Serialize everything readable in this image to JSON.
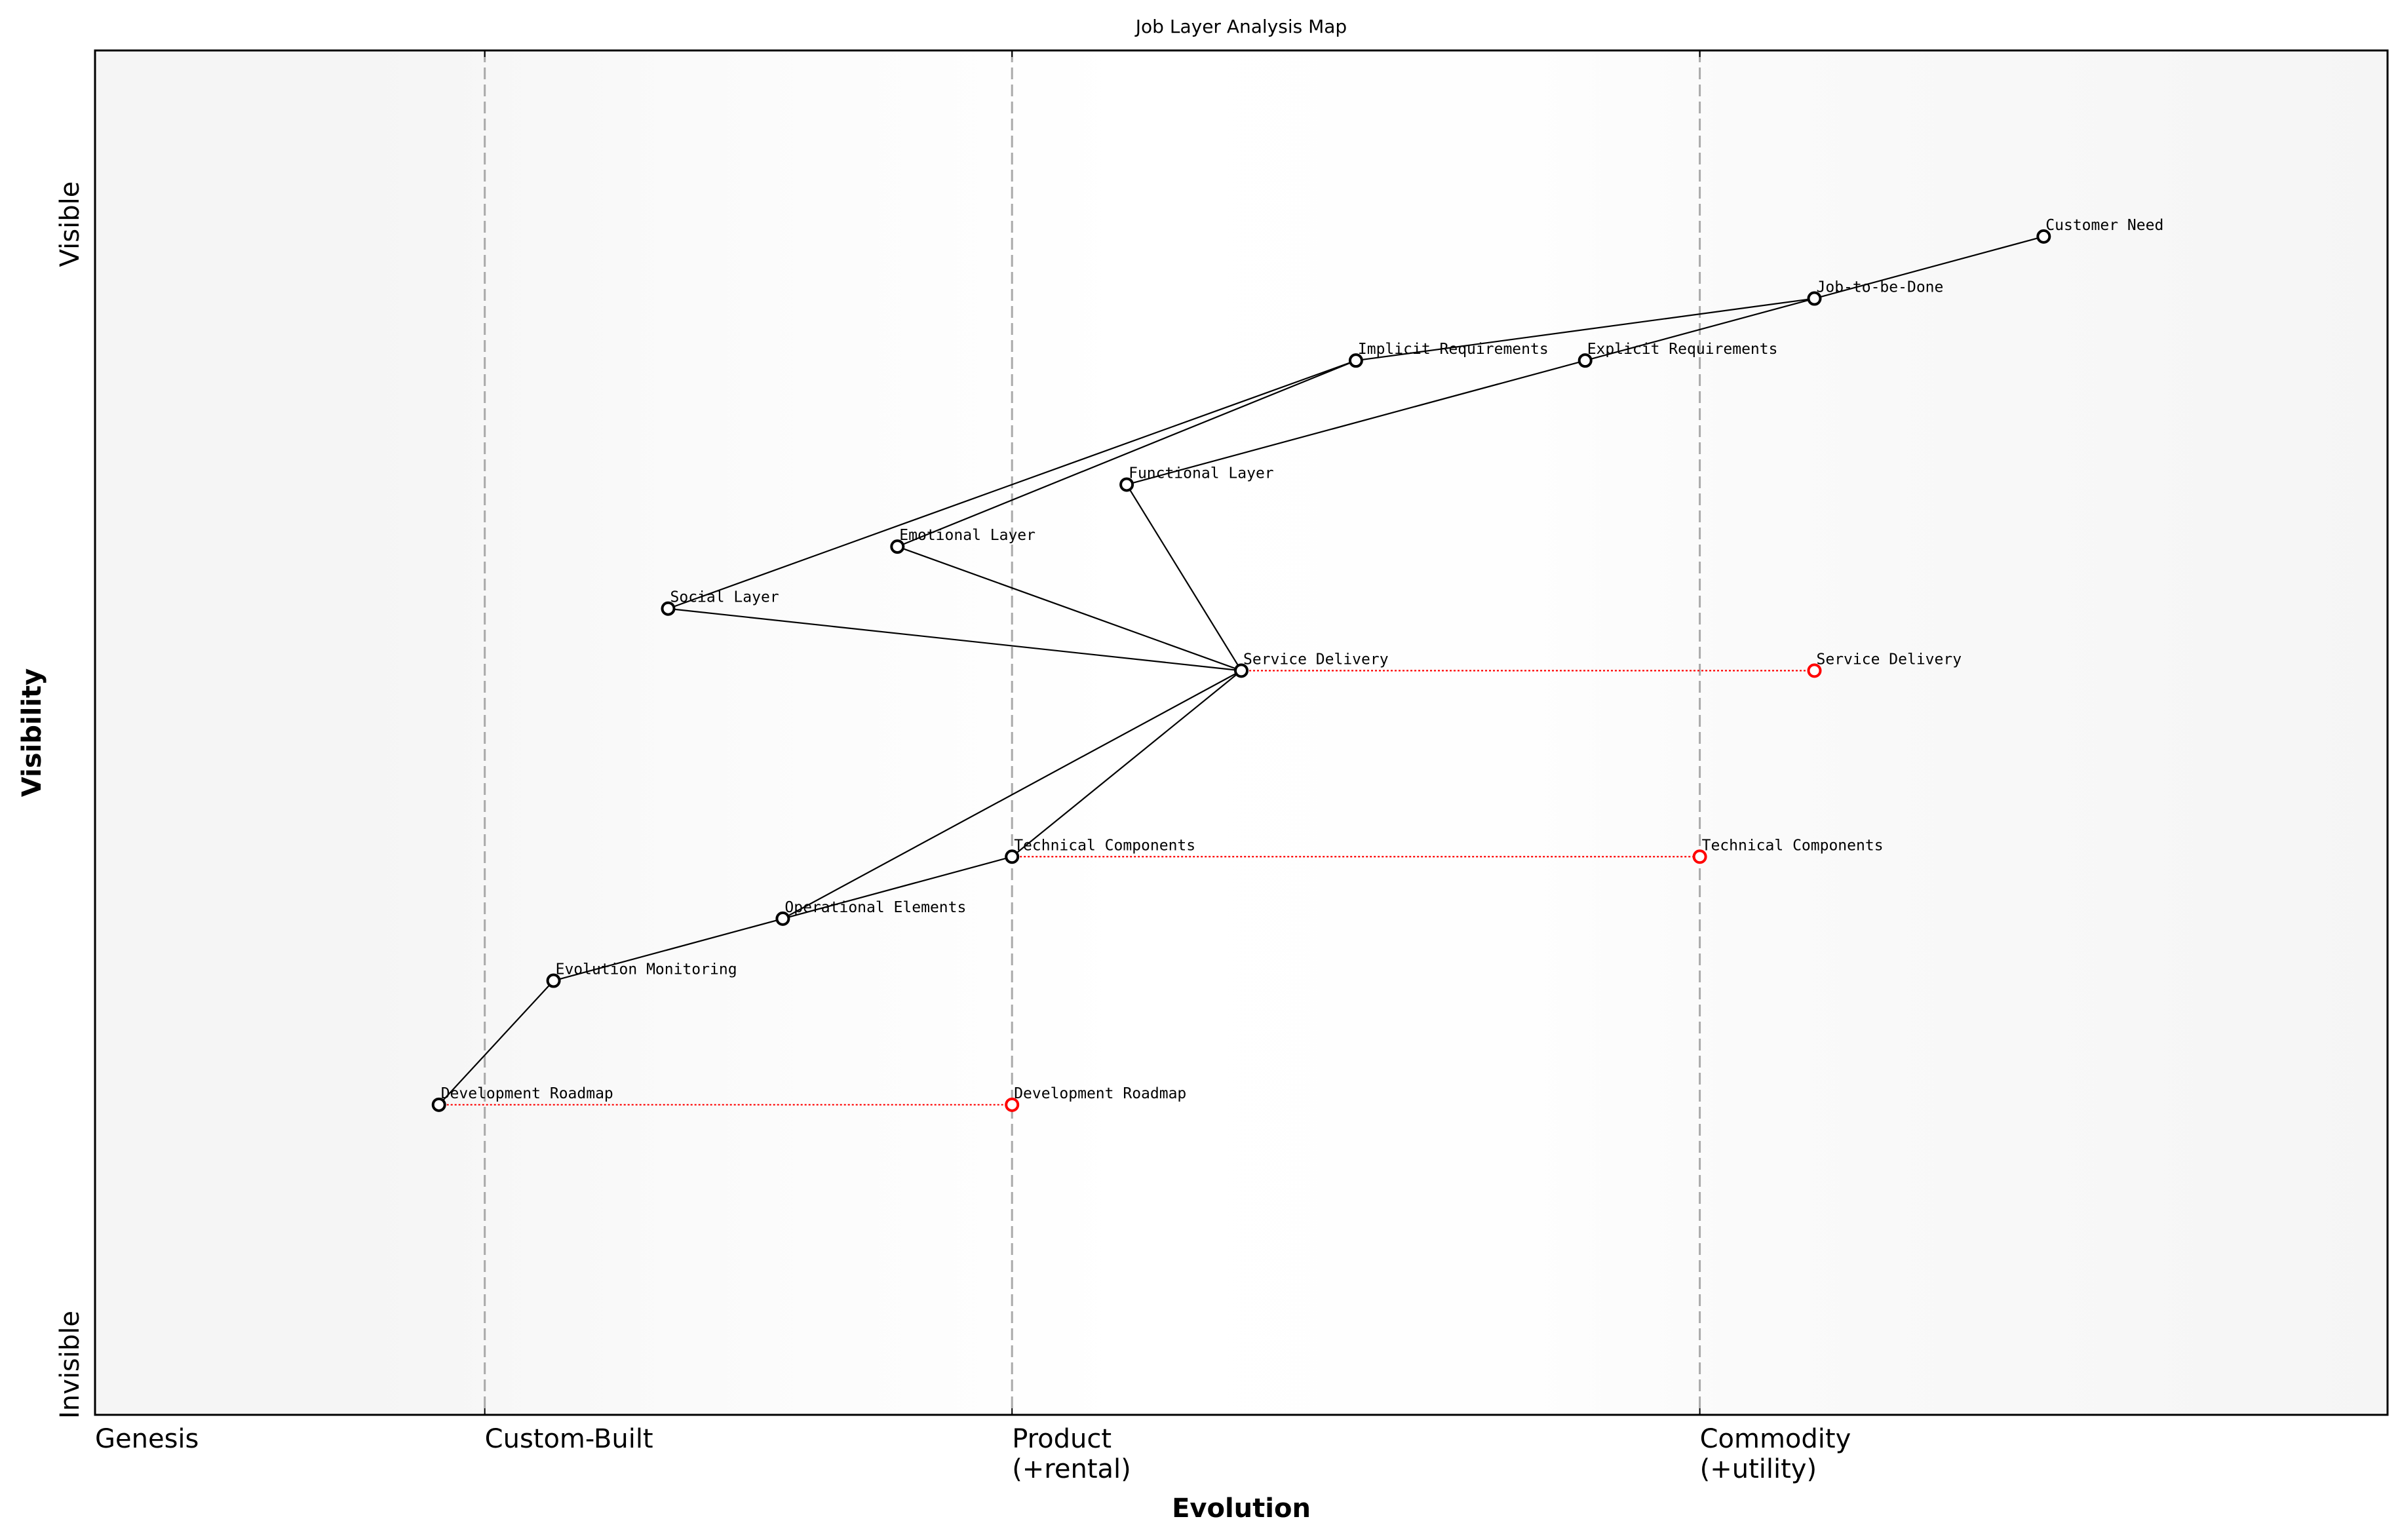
{
  "chart_data": {
    "type": "scatter",
    "title": "Job Layer Analysis Map",
    "xlabel": "Evolution",
    "ylabel": "Visibility",
    "xlim": [
      0,
      1
    ],
    "ylim": [
      0,
      1.1
    ],
    "grid": false,
    "x_stages": [
      {
        "label": "Genesis",
        "x": 0
      },
      {
        "label": "Custom-Built",
        "x": 0.17
      },
      {
        "label": "Product\n(+rental)",
        "x": 0.4
      },
      {
        "label": "Commodity\n(+utility)",
        "x": 0.7
      }
    ],
    "y_labels": {
      "top": "Visible",
      "bottom": "Invisible"
    },
    "components": [
      {
        "name": "Customer Need",
        "x": 0.85,
        "y": 0.95
      },
      {
        "name": "Job-to-be-Done",
        "x": 0.75,
        "y": 0.9
      },
      {
        "name": "Implicit Requirements",
        "x": 0.55,
        "y": 0.85
      },
      {
        "name": "Explicit Requirements",
        "x": 0.65,
        "y": 0.85
      },
      {
        "name": "Functional Layer",
        "x": 0.45,
        "y": 0.75
      },
      {
        "name": "Emotional Layer",
        "x": 0.35,
        "y": 0.7
      },
      {
        "name": "Social Layer",
        "x": 0.25,
        "y": 0.65
      },
      {
        "name": "Service Delivery",
        "x": 0.5,
        "y": 0.6
      },
      {
        "name": "Technical Components",
        "x": 0.4,
        "y": 0.45
      },
      {
        "name": "Operational Elements",
        "x": 0.3,
        "y": 0.4
      },
      {
        "name": "Evolution Monitoring",
        "x": 0.2,
        "y": 0.35
      },
      {
        "name": "Development Roadmap",
        "x": 0.15,
        "y": 0.25
      }
    ],
    "links": [
      [
        "Customer Need",
        "Job-to-be-Done"
      ],
      [
        "Job-to-be-Done",
        "Implicit Requirements"
      ],
      [
        "Job-to-be-Done",
        "Explicit Requirements"
      ],
      [
        "Implicit Requirements",
        "Social Layer"
      ],
      [
        "Implicit Requirements",
        "Emotional Layer"
      ],
      [
        "Explicit Requirements",
        "Functional Layer"
      ],
      [
        "Functional Layer",
        "Service Delivery"
      ],
      [
        "Emotional Layer",
        "Service Delivery"
      ],
      [
        "Social Layer",
        "Service Delivery"
      ],
      [
        "Service Delivery",
        "Technical Components"
      ],
      [
        "Service Delivery",
        "Operational Elements"
      ],
      [
        "Technical Components",
        "Operational Elements"
      ],
      [
        "Operational Elements",
        "Evolution Monitoring"
      ],
      [
        "Evolution Monitoring",
        "Development Roadmap"
      ]
    ],
    "evolutions": [
      {
        "name": "Service Delivery",
        "from_x": 0.5,
        "to_x": 0.75,
        "y": 0.6
      },
      {
        "name": "Technical Components",
        "from_x": 0.4,
        "to_x": 0.7,
        "y": 0.45
      },
      {
        "name": "Development Roadmap",
        "from_x": 0.15,
        "to_x": 0.4,
        "y": 0.25
      }
    ],
    "colors": {
      "component": "#000000",
      "evolved": "#ff0000",
      "evolution_line": "#ff0000",
      "stage_line": "#aaaaaa"
    }
  }
}
